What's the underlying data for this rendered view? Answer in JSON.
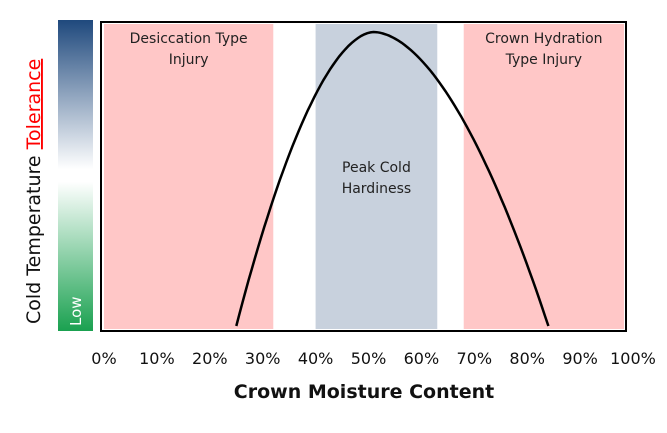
{
  "chart_data": {
    "type": "area",
    "xlabel": "Crown Moisture Content",
    "ylabel": "Cold Temperature",
    "ylabel_highlight": "Tolerance",
    "y_scale_low_label": "Low",
    "x_ticks": [
      "0%",
      "10%",
      "20%",
      "30%",
      "40%",
      "50%",
      "60%",
      "70%",
      "80%",
      "90%",
      "100%"
    ],
    "xlim": [
      0,
      100
    ],
    "regions": [
      {
        "label": "Desiccation Type Injury",
        "label_lines": [
          "Desiccation Type",
          "Injury"
        ],
        "x_range": [
          0,
          32
        ],
        "color": "#ffc7c7"
      },
      {
        "label": "Peak Cold Hardiness",
        "label_lines": [
          "Peak Cold",
          "Hardiness"
        ],
        "x_range": [
          40,
          63
        ],
        "color": "#c8d1dd"
      },
      {
        "label": "Crown Hydration Type Injury",
        "label_lines": [
          "Crown Hydration",
          "Type Injury"
        ],
        "x_range": [
          68,
          100
        ],
        "color": "#ffc7c7"
      }
    ],
    "curve": {
      "start_x": 25,
      "peak_x": 51,
      "end_x": 84
    },
    "colors": {
      "highlight": "#ff0000",
      "gradient_top": "#1f497d",
      "gradient_bottom": "#1aa150",
      "curve": "#000000"
    }
  }
}
